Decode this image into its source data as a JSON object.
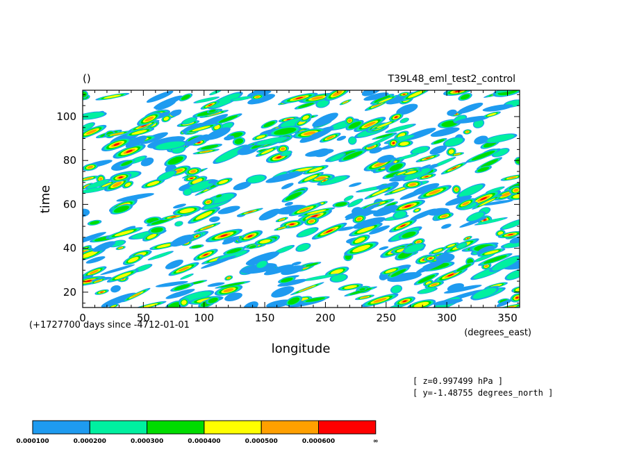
{
  "chart_data": {
    "type": "heatmap",
    "title_left": "()",
    "title_right": "T39L48_eml_test2_control",
    "xlabel": "longitude",
    "ylabel": "time",
    "x_units": "(degrees_east)",
    "time_units_note": "(+1727700 days since -4712-01-01",
    "xlim": [
      0,
      360
    ],
    "ylim": [
      13,
      112
    ],
    "x_ticks": [
      "0",
      "50",
      "100",
      "150",
      "200",
      "250",
      "300",
      "350"
    ],
    "y_ticks": [
      "20",
      "40",
      "60",
      "80",
      "100"
    ],
    "annotations": [
      "[ z=0.997499 hPa ]",
      "[ y=-1.48755 degrees_north ]"
    ],
    "colorbar": {
      "bins": [
        {
          "label": "0.000100",
          "color": "#1e9bf0"
        },
        {
          "label": "0.000200",
          "color": "#00f0a0"
        },
        {
          "label": "0.000300",
          "color": "#00dc00"
        },
        {
          "label": "0.000400",
          "color": "#ffff00"
        },
        {
          "label": "0.000500",
          "color": "#ffa000"
        },
        {
          "label": "0.000600",
          "color": "#ff0000"
        }
      ],
      "end_label": "∞"
    }
  }
}
